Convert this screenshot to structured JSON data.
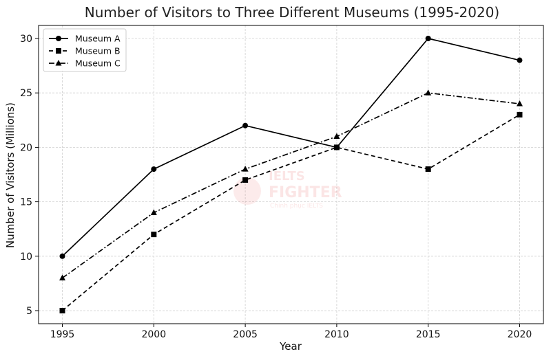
{
  "chart_data": {
    "type": "line",
    "title": "Number of Visitors to Three Different Museums (1995-2020)",
    "xlabel": "Year",
    "ylabel": "Number of Visitors (Millions)",
    "x": [
      1995,
      2000,
      2005,
      2010,
      2015,
      2020
    ],
    "xlim": [
      1993.7,
      2021.3
    ],
    "ylim": [
      3.8,
      31.2
    ],
    "yticks": [
      5,
      10,
      15,
      20,
      25,
      30
    ],
    "grid": true,
    "legend_position": "top-left",
    "series": [
      {
        "name": "Museum A",
        "values": [
          10,
          18,
          22,
          20,
          30,
          28
        ],
        "line_style": "solid",
        "marker": "circle",
        "color": "#000000"
      },
      {
        "name": "Museum B",
        "values": [
          5,
          12,
          17,
          20,
          18,
          23
        ],
        "line_style": "dashed",
        "marker": "square",
        "color": "#000000"
      },
      {
        "name": "Museum C",
        "values": [
          8,
          14,
          18,
          21,
          25,
          24
        ],
        "line_style": "dashdot",
        "marker": "triangle",
        "color": "#000000"
      }
    ]
  },
  "watermark": {
    "line1": "IELTS",
    "line2": "FIGHTER",
    "line3": "Chinh phục IELTS",
    "color": "#e85a5a"
  }
}
